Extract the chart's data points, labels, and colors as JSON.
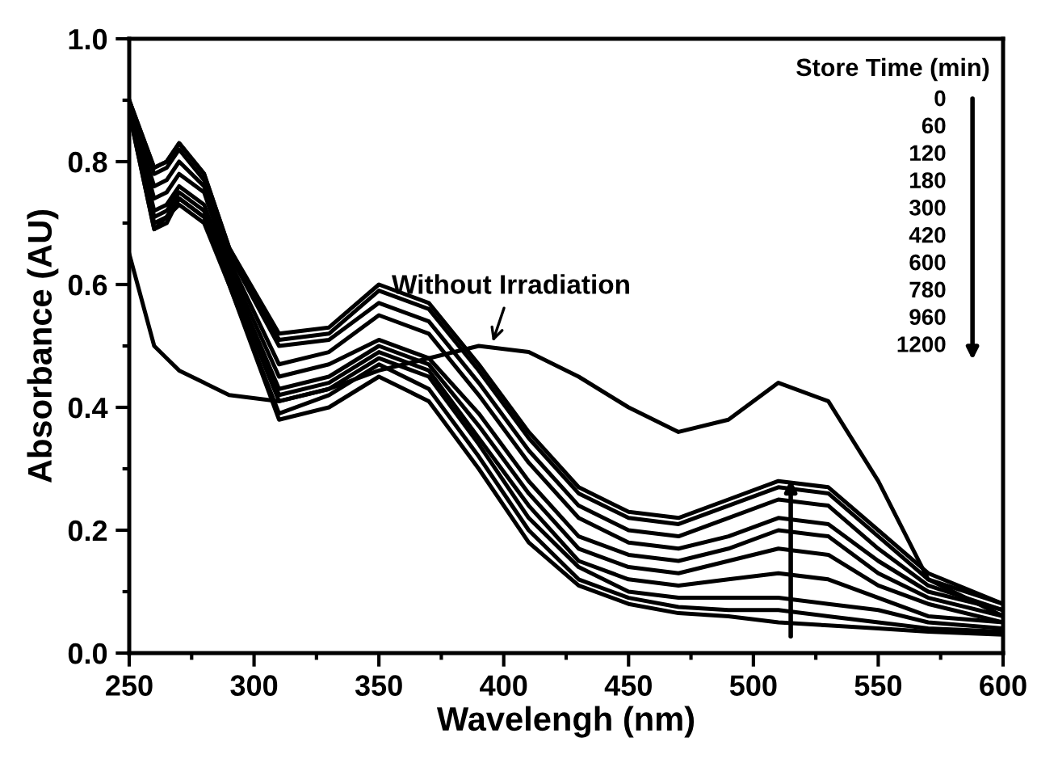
{
  "chart_data": {
    "type": "line",
    "xlabel": "Wavelengh (nm)",
    "ylabel": "Absorbance (AU)",
    "x": [
      250,
      260,
      265,
      270,
      280,
      290,
      310,
      330,
      350,
      370,
      390,
      410,
      430,
      450,
      470,
      490,
      510,
      530,
      550,
      570,
      600
    ],
    "xlim": [
      250,
      600
    ],
    "xticks": [
      250,
      300,
      350,
      400,
      450,
      500,
      550,
      600
    ],
    "ylim": [
      0.0,
      1.0
    ],
    "yticks": [
      {
        "value": 0.0,
        "label": "0.0"
      },
      {
        "value": 0.2,
        "label": "0.2"
      },
      {
        "value": 0.4,
        "label": "0.4"
      },
      {
        "value": 0.6,
        "label": "0.6"
      },
      {
        "value": 0.8,
        "label": "0.8"
      },
      {
        "value": 1.0,
        "label": "1.0"
      }
    ],
    "grid": false,
    "legend": false,
    "marker": "none",
    "line_style": "solid",
    "series": [
      {
        "color": "#000000",
        "values": [
          0.9,
          0.79,
          0.8,
          0.83,
          0.78,
          0.66,
          0.52,
          0.53,
          0.6,
          0.57,
          0.47,
          0.36,
          0.27,
          0.23,
          0.22,
          0.25,
          0.28,
          0.27,
          0.2,
          0.13,
          0.08
        ]
      },
      {
        "color": "#000000",
        "values": [
          0.9,
          0.79,
          0.8,
          0.83,
          0.78,
          0.66,
          0.51,
          0.52,
          0.59,
          0.56,
          0.46,
          0.35,
          0.26,
          0.22,
          0.21,
          0.24,
          0.27,
          0.26,
          0.19,
          0.12,
          0.08
        ]
      },
      {
        "color": "#000000",
        "values": [
          0.9,
          0.78,
          0.79,
          0.82,
          0.77,
          0.65,
          0.5,
          0.51,
          0.57,
          0.54,
          0.44,
          0.33,
          0.24,
          0.2,
          0.19,
          0.22,
          0.25,
          0.24,
          0.17,
          0.11,
          0.07
        ]
      },
      {
        "color": "#000000",
        "values": [
          0.89,
          0.76,
          0.77,
          0.8,
          0.76,
          0.64,
          0.47,
          0.49,
          0.55,
          0.52,
          0.42,
          0.31,
          0.22,
          0.18,
          0.17,
          0.19,
          0.22,
          0.21,
          0.15,
          0.1,
          0.07
        ]
      },
      {
        "color": "#000000",
        "values": [
          0.89,
          0.74,
          0.75,
          0.78,
          0.75,
          0.63,
          0.45,
          0.47,
          0.51,
          0.48,
          0.39,
          0.28,
          0.19,
          0.16,
          0.15,
          0.17,
          0.2,
          0.19,
          0.13,
          0.09,
          0.06
        ]
      },
      {
        "color": "#000000",
        "values": [
          0.89,
          0.72,
          0.73,
          0.76,
          0.73,
          0.62,
          0.43,
          0.45,
          0.5,
          0.47,
          0.37,
          0.26,
          0.17,
          0.14,
          0.13,
          0.15,
          0.17,
          0.16,
          0.11,
          0.08,
          0.05
        ]
      },
      {
        "color": "#000000",
        "values": [
          0.89,
          0.71,
          0.72,
          0.75,
          0.72,
          0.61,
          0.42,
          0.44,
          0.49,
          0.46,
          0.35,
          0.24,
          0.15,
          0.12,
          0.11,
          0.12,
          0.13,
          0.12,
          0.09,
          0.06,
          0.05
        ]
      },
      {
        "color": "#000000",
        "values": [
          0.88,
          0.7,
          0.71,
          0.74,
          0.71,
          0.61,
          0.41,
          0.43,
          0.48,
          0.45,
          0.34,
          0.22,
          0.14,
          0.1,
          0.09,
          0.09,
          0.09,
          0.08,
          0.07,
          0.05,
          0.04
        ]
      },
      {
        "color": "#000000",
        "values": [
          0.88,
          0.69,
          0.7,
          0.74,
          0.71,
          0.6,
          0.39,
          0.42,
          0.47,
          0.43,
          0.32,
          0.2,
          0.12,
          0.09,
          0.075,
          0.07,
          0.07,
          0.06,
          0.05,
          0.04,
          0.035
        ]
      },
      {
        "color": "#000000",
        "values": [
          0.88,
          0.69,
          0.71,
          0.73,
          0.7,
          0.6,
          0.38,
          0.4,
          0.45,
          0.41,
          0.3,
          0.18,
          0.11,
          0.08,
          0.065,
          0.06,
          0.05,
          0.045,
          0.04,
          0.035,
          0.03
        ]
      },
      {
        "color": "#000000",
        "values": [
          0.65,
          0.5,
          0.48,
          0.46,
          0.44,
          0.42,
          0.41,
          0.43,
          0.46,
          0.48,
          0.5,
          0.49,
          0.45,
          0.4,
          0.36,
          0.38,
          0.44,
          0.41,
          0.28,
          0.12,
          0.06
        ]
      }
    ],
    "annotations": [
      {
        "text": "Without Irradiation",
        "x": 395,
        "y": 0.5
      },
      "Store Time (min)",
      "0",
      "60",
      "120",
      "180",
      "300",
      "420",
      "600",
      "780",
      "960",
      "1200"
    ]
  }
}
